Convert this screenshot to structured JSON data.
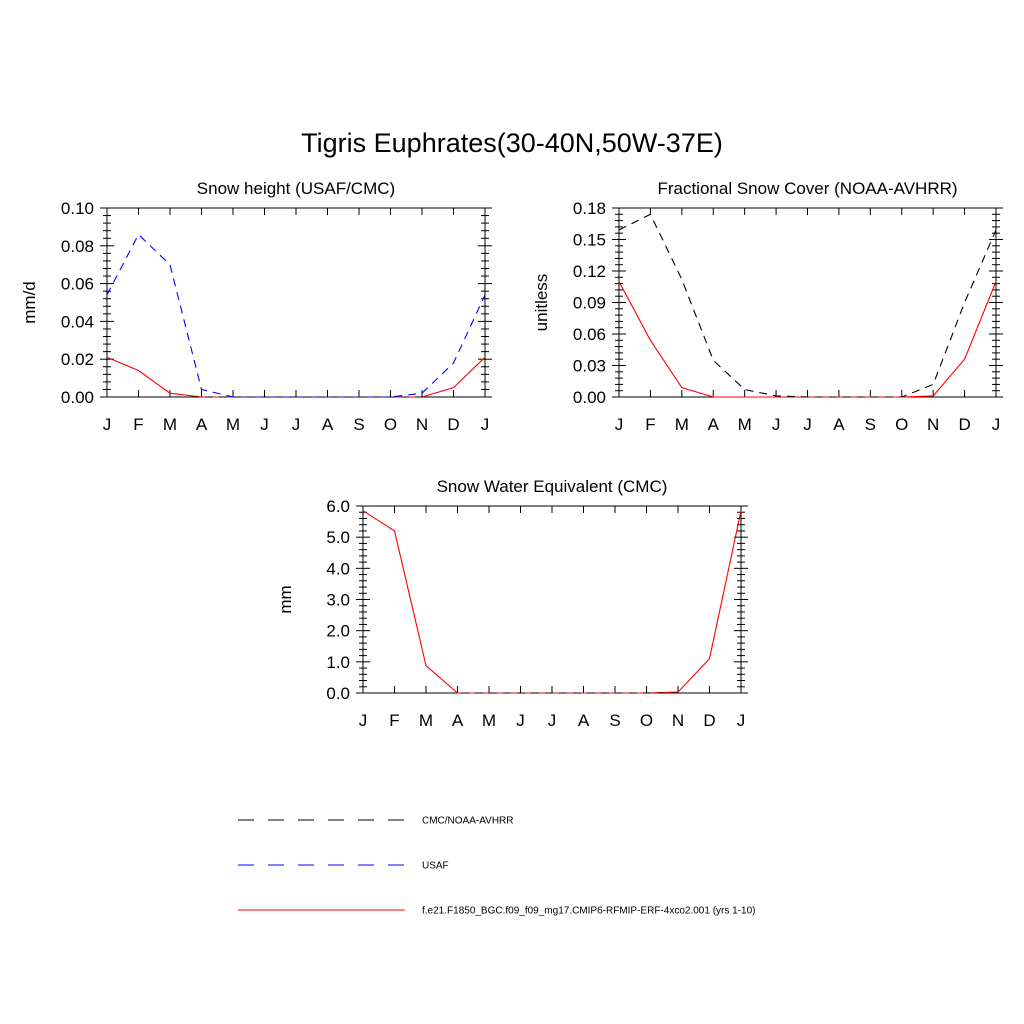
{
  "title": "Tigris Euphrates(30-40N,50W-37E)",
  "months": [
    "J",
    "F",
    "M",
    "A",
    "M",
    "J",
    "J",
    "A",
    "S",
    "O",
    "N",
    "D",
    "J"
  ],
  "colors": {
    "model": "#ff0000",
    "obs": "#000000",
    "usaf": "#0000ff"
  },
  "legend": [
    {
      "label": "CMC/NOAA-AVHRR",
      "color": "#000000",
      "style": "dashed"
    },
    {
      "label": "USAF",
      "color": "#0000ff",
      "style": "dashed"
    },
    {
      "label": "f.e21.F1850_BGC.f09_f09_mg17.CMIP6-RFMIP-ERF-4xco2.001 (yrs 1-10)",
      "color": "#ff0000",
      "style": "solid"
    }
  ],
  "chart_data": [
    {
      "type": "line",
      "title": "Snow height (USAF/CMC)",
      "ylabel": "mm/d",
      "xlabel": "",
      "categories": [
        "J",
        "F",
        "M",
        "A",
        "M",
        "J",
        "J",
        "A",
        "S",
        "O",
        "N",
        "D",
        "J"
      ],
      "ylim": [
        0,
        0.1
      ],
      "yticks": [
        "0.00",
        "0.02",
        "0.04",
        "0.06",
        "0.08",
        "0.10"
      ],
      "series": [
        {
          "key": "model",
          "values": [
            0.021,
            0.014,
            0.002,
            0,
            0,
            0,
            0,
            0,
            0,
            0,
            0,
            0.005,
            0.021
          ]
        },
        {
          "key": "usaf",
          "values": [
            0.054,
            0.086,
            0.07,
            0.004,
            0,
            0,
            0,
            0,
            0,
            0,
            0.002,
            0.018,
            0.054
          ]
        },
        {
          "key": "obs",
          "values": [
            0,
            0,
            0,
            0,
            0,
            0,
            0,
            0,
            0,
            0,
            0,
            0,
            0
          ]
        }
      ]
    },
    {
      "type": "line",
      "title": "Fractional Snow Cover (NOAA-AVHRR)",
      "ylabel": "unitless",
      "xlabel": "",
      "categories": [
        "J",
        "F",
        "M",
        "A",
        "M",
        "J",
        "J",
        "A",
        "S",
        "O",
        "N",
        "D",
        "J"
      ],
      "ylim": [
        0,
        0.18
      ],
      "yticks": [
        "0.00",
        "0.03",
        "0.06",
        "0.09",
        "0.12",
        "0.15",
        "0.18"
      ],
      "series": [
        {
          "key": "model",
          "values": [
            0.11,
            0.054,
            0.009,
            0,
            0,
            0,
            0,
            0,
            0,
            0,
            0.001,
            0.036,
            0.11
          ]
        },
        {
          "key": "obs",
          "values": [
            0.159,
            0.174,
            0.112,
            0.035,
            0.007,
            0.001,
            0,
            0,
            0,
            0,
            0.012,
            0.09,
            0.159
          ]
        }
      ]
    },
    {
      "type": "line",
      "title": "Snow Water Equivalent (CMC)",
      "ylabel": "mm",
      "xlabel": "",
      "categories": [
        "J",
        "F",
        "M",
        "A",
        "M",
        "J",
        "J",
        "A",
        "S",
        "O",
        "N",
        "D",
        "J"
      ],
      "ylim": [
        0,
        6
      ],
      "yticks": [
        "0.0",
        "1.0",
        "2.0",
        "3.0",
        "4.0",
        "5.0",
        "6.0"
      ],
      "series": [
        {
          "key": "model",
          "values": [
            5.85,
            5.2,
            0.88,
            0,
            0,
            0,
            0,
            0,
            0,
            0,
            0.03,
            1.1,
            5.85
          ]
        },
        {
          "key": "obs",
          "values": [
            0,
            0,
            0,
            0,
            0,
            0,
            0,
            0,
            0,
            0,
            0,
            0,
            0
          ]
        }
      ]
    }
  ]
}
